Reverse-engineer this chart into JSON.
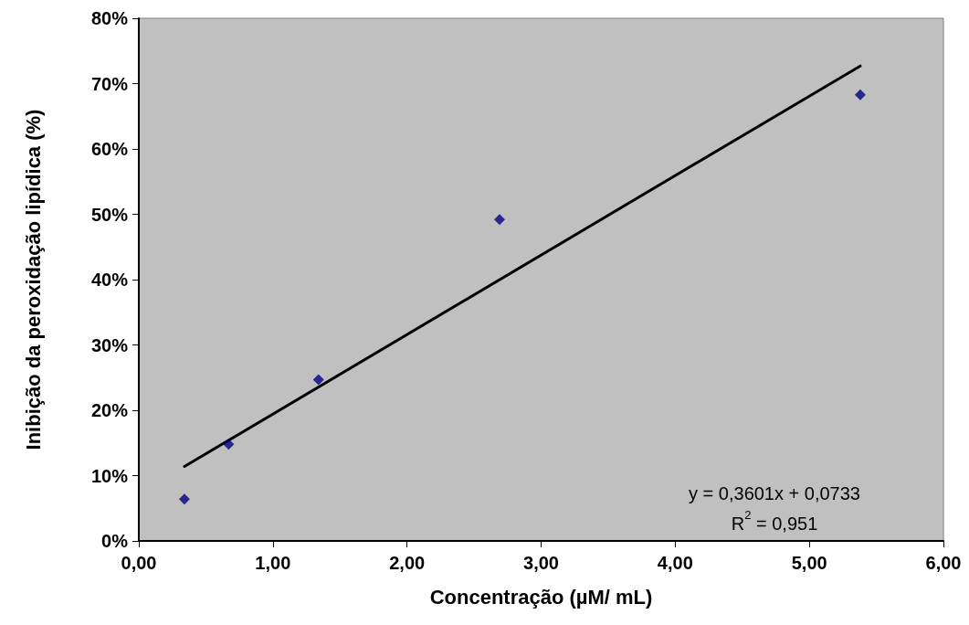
{
  "chart_data": {
    "type": "scatter",
    "xlabel": "Concentração (µM/ mL)",
    "ylabel": "Inibição da peroxidação lipídica (%)",
    "xlim": [
      0,
      6
    ],
    "xticks": [
      {
        "value": 0,
        "label": "0,00"
      },
      {
        "value": 1,
        "label": "1,00"
      },
      {
        "value": 2,
        "label": "2,00"
      },
      {
        "value": 3,
        "label": "3,00"
      },
      {
        "value": 4,
        "label": "4,00"
      },
      {
        "value": 5,
        "label": "5,00"
      },
      {
        "value": 6,
        "label": "6,00"
      }
    ],
    "ylim": [
      0,
      80
    ],
    "yticks": [
      {
        "value": 0,
        "label": "0%"
      },
      {
        "value": 10,
        "label": "10%"
      },
      {
        "value": 20,
        "label": "20%"
      },
      {
        "value": 30,
        "label": "30%"
      },
      {
        "value": 40,
        "label": "40%"
      },
      {
        "value": 50,
        "label": "50%"
      },
      {
        "value": 60,
        "label": "60%"
      },
      {
        "value": 70,
        "label": "70%"
      },
      {
        "value": 80,
        "label": "80%"
      }
    ],
    "grid": false,
    "marker": "diamond",
    "series": [
      {
        "color": "#000080",
        "x": [
          0.34,
          0.67,
          1.34,
          2.69,
          5.38
        ],
        "values": [
          6.4,
          14.8,
          24.7,
          49.2,
          68.3
        ]
      },
      {
        "type": "line",
        "color": "#000000",
        "line_style": "solid",
        "marker": "none",
        "x": [
          0.34,
          5.38
        ],
        "values": [
          11.4,
          72.7
        ]
      }
    ],
    "annotations": [
      "y = 0,3601x + 0,0733",
      "R$^{2}$ = 0,951"
    ]
  }
}
